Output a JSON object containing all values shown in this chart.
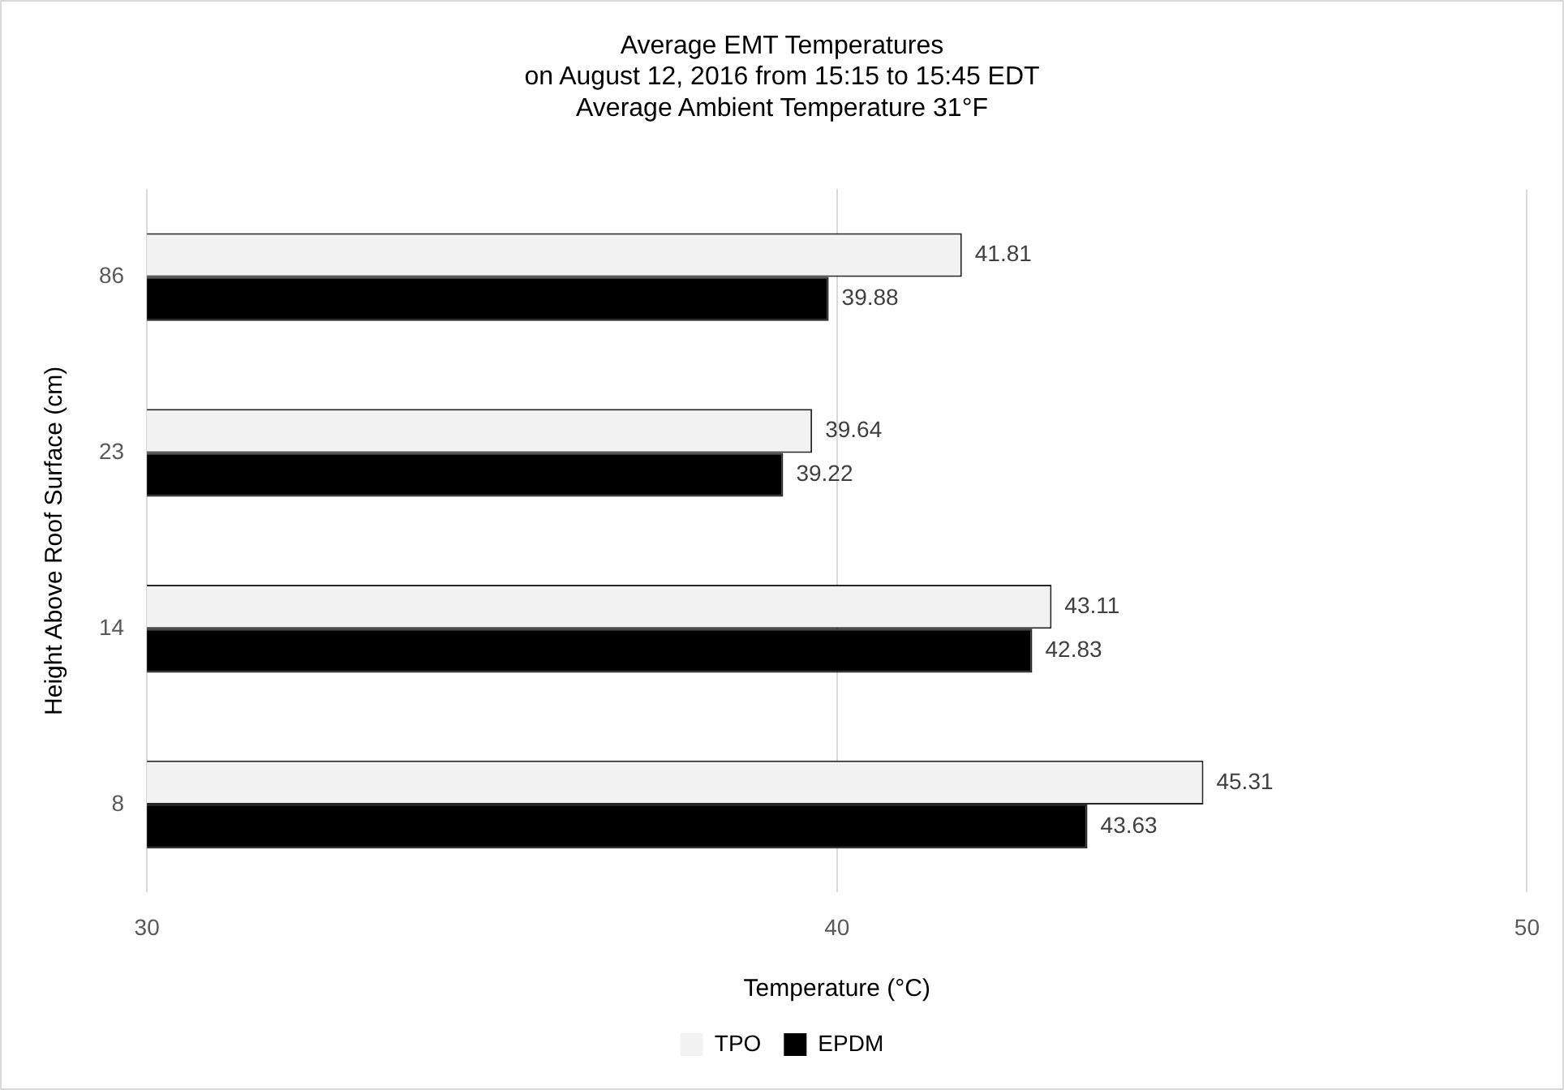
{
  "chart_data": {
    "type": "bar",
    "orientation": "horizontal",
    "title": "Average EMT Temperatures\non August 12, 2016 from 15:15 to 15:45 EDT\nAverage Ambient Temperature 31°F",
    "xlabel": "Temperature (°C)",
    "ylabel": "Height Above Roof Surface (cm)",
    "categories": [
      "86",
      "23",
      "14",
      "8"
    ],
    "series": [
      {
        "name": "TPO",
        "color": "#f2f2f2",
        "values": [
          41.81,
          39.64,
          43.11,
          45.31
        ]
      },
      {
        "name": "EPDM",
        "color": "#000000",
        "values": [
          39.88,
          39.22,
          42.83,
          43.63
        ]
      }
    ],
    "xlim": [
      30,
      50
    ],
    "xticks": [
      30,
      40,
      50
    ],
    "grid": "x",
    "legend": "bottom",
    "data_labels": true
  }
}
